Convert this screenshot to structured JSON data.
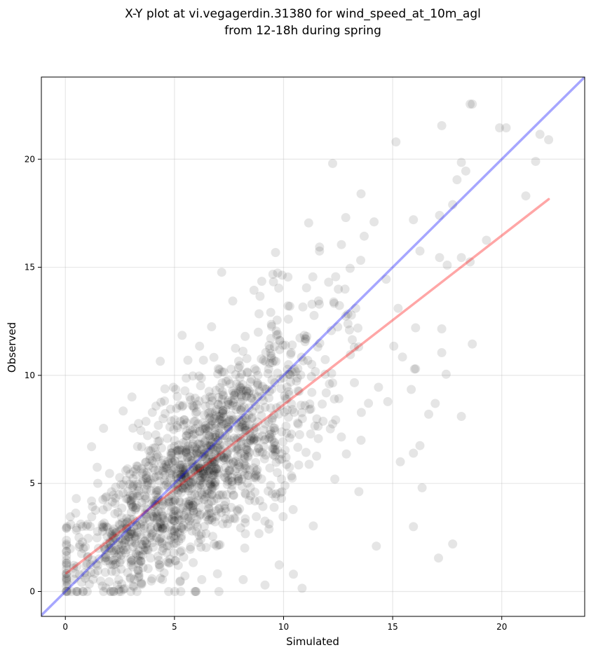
{
  "chart_data": {
    "type": "scatter",
    "title_line1": "X-Y plot at vi.vegagerdin.31380 for wind_speed_at_10m_agl",
    "title_line2": "from 12-18h during spring",
    "xlabel": "Simulated",
    "ylabel": "Observed",
    "xlim": [
      -1.1,
      23.8
    ],
    "ylim": [
      -1.15,
      23.8
    ],
    "xticks": [
      0,
      5,
      10,
      15,
      20
    ],
    "yticks": [
      0,
      5,
      10,
      15,
      20
    ],
    "grid": true,
    "point_color": "#000000",
    "point_alpha": 0.1,
    "identity_line": {
      "color": "#0000ff",
      "alpha": 0.35,
      "from": [
        -1.1,
        -1.1
      ],
      "to": [
        23.8,
        23.8
      ]
    },
    "fit_line": {
      "color": "#ff0000",
      "alpha": 0.35,
      "from": [
        0.05,
        0.85
      ],
      "to": [
        22.15,
        18.15
      ]
    },
    "outliers": [
      [
        18.55,
        22.55
      ],
      [
        18.65,
        22.55
      ],
      [
        17.25,
        21.55
      ],
      [
        19.9,
        21.45
      ],
      [
        20.2,
        21.45
      ],
      [
        21.75,
        21.15
      ],
      [
        22.15,
        20.9
      ],
      [
        15.15,
        20.8
      ],
      [
        18.15,
        19.85
      ],
      [
        21.55,
        19.9
      ],
      [
        12.25,
        19.8
      ],
      [
        18.35,
        19.45
      ],
      [
        17.95,
        19.05
      ],
      [
        21.1,
        18.3
      ],
      [
        13.55,
        18.4
      ],
      [
        17.75,
        17.9
      ],
      [
        17.15,
        17.4
      ],
      [
        15.95,
        17.2
      ],
      [
        12.85,
        17.3
      ],
      [
        14.15,
        17.1
      ],
      [
        11.15,
        17.05
      ],
      [
        19.3,
        16.25
      ],
      [
        16.25,
        15.75
      ],
      [
        17.15,
        15.45
      ],
      [
        17.5,
        15.1
      ],
      [
        18.15,
        15.45
      ],
      [
        18.55,
        15.25
      ],
      [
        15.25,
        13.1
      ],
      [
        16.05,
        12.2
      ],
      [
        17.25,
        12.15
      ],
      [
        17.25,
        11.05
      ],
      [
        18.65,
        11.45
      ],
      [
        15.45,
        10.85
      ],
      [
        17.45,
        10.05
      ],
      [
        16.95,
        8.7
      ],
      [
        18.15,
        8.1
      ],
      [
        16.65,
        8.2
      ],
      [
        16.25,
        6.75
      ],
      [
        15.95,
        6.4
      ],
      [
        15.35,
        6.0
      ],
      [
        16.35,
        4.8
      ],
      [
        14.25,
        2.1
      ],
      [
        15.95,
        3.0
      ],
      [
        17.75,
        2.2
      ],
      [
        17.1,
        1.55
      ],
      [
        12.35,
        5.2
      ],
      [
        13.55,
        7.0
      ],
      [
        10.85,
        0.15
      ],
      [
        10.45,
        0.8
      ],
      [
        9.15,
        0.3
      ],
      [
        8.15,
        0.55
      ],
      [
        6.25,
        0.55
      ],
      [
        5.25,
        0.45
      ],
      [
        4.45,
        0.55
      ],
      [
        1.2,
        6.7
      ],
      [
        1.75,
        7.55
      ],
      [
        2.65,
        8.35
      ],
      [
        4.35,
        10.65
      ],
      [
        5.35,
        11.85
      ],
      [
        6.7,
        12.25
      ],
      [
        6.15,
        11.35
      ],
      [
        9.0,
        14.35
      ],
      [
        10.2,
        14.55
      ],
      [
        11.05,
        14.05
      ],
      [
        11.65,
        15.75
      ],
      [
        12.65,
        16.05
      ],
      [
        13.05,
        14.95
      ],
      [
        14.7,
        14.45
      ],
      [
        2.55,
        0.0
      ],
      [
        0.05,
        2.2
      ],
      [
        0.5,
        4.3
      ],
      [
        3.05,
        9.0
      ],
      [
        4.95,
        9.45
      ],
      [
        13.15,
        11.65
      ],
      [
        14.35,
        9.45
      ],
      [
        15.85,
        9.35
      ],
      [
        12.25,
        9.65
      ],
      [
        10.95,
        11.85
      ],
      [
        15.05,
        11.35
      ],
      [
        16.05,
        10.3
      ]
    ],
    "cluster": {
      "count": 1500,
      "seed": 31380,
      "sim_mean": 6.2,
      "sim_sd": 2.9,
      "sim_range": [
        0.05,
        16.0
      ],
      "slope": 0.78,
      "intercept": 0.85,
      "noise_sd": 1.9,
      "obs_range": [
        0.0,
        20.0
      ]
    }
  }
}
